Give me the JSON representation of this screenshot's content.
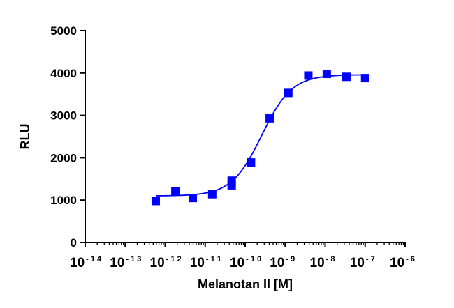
{
  "chart_data": {
    "type": "scatter",
    "xlabel": "Melanotan II [M]",
    "ylabel": "RLU",
    "xscale": "log",
    "xlim": [
      1e-14,
      1e-06
    ],
    "ylim": [
      0,
      5000
    ],
    "yticks": [
      0,
      1000,
      2000,
      3000,
      4000,
      5000
    ],
    "ytick_labels": [
      "0",
      "1000",
      "2000",
      "3000",
      "4000",
      "5000"
    ],
    "xticks": [
      1e-14,
      1e-13,
      1e-12,
      1e-11,
      1e-10,
      1e-09,
      1e-08,
      1e-07,
      1e-06
    ],
    "xtick_labels": [
      {
        "base": "10",
        "exp": "-14"
      },
      {
        "base": "10",
        "exp": "-13"
      },
      {
        "base": "10",
        "exp": "-12"
      },
      {
        "base": "10",
        "exp": "-11"
      },
      {
        "base": "10",
        "exp": "-10"
      },
      {
        "base": "10",
        "exp": "-9"
      },
      {
        "base": "10",
        "exp": "-8"
      },
      {
        "base": "10",
        "exp": "-7"
      },
      {
        "base": "10",
        "exp": "-6"
      }
    ],
    "grid": false,
    "marker": "square",
    "color": "#0000ff",
    "points": [
      {
        "x": 5.8e-13,
        "y": 980
      },
      {
        "x": 1.8e-12,
        "y": 1210
      },
      {
        "x": 4.9e-12,
        "y": 1050
      },
      {
        "x": 1.5e-11,
        "y": 1140
      },
      {
        "x": 4.6e-11,
        "y": 1460
      },
      {
        "x": 4.6e-11,
        "y": 1350
      },
      {
        "x": 1.4e-10,
        "y": 1890
      },
      {
        "x": 4.1e-10,
        "y": 2930
      },
      {
        "x": 1.2e-09,
        "y": 3530
      },
      {
        "x": 3.8e-09,
        "y": 3940
      },
      {
        "x": 1.1e-08,
        "y": 3980
      },
      {
        "x": 3.4e-08,
        "y": 3910
      },
      {
        "x": 1e-07,
        "y": 3880
      }
    ],
    "fit": {
      "model": "four-parameter logistic",
      "bottom": 1100,
      "top": 3960,
      "ec50": 2.6e-10,
      "hill": 1.15,
      "x_range": [
        5.8e-13,
        1e-07
      ]
    }
  }
}
